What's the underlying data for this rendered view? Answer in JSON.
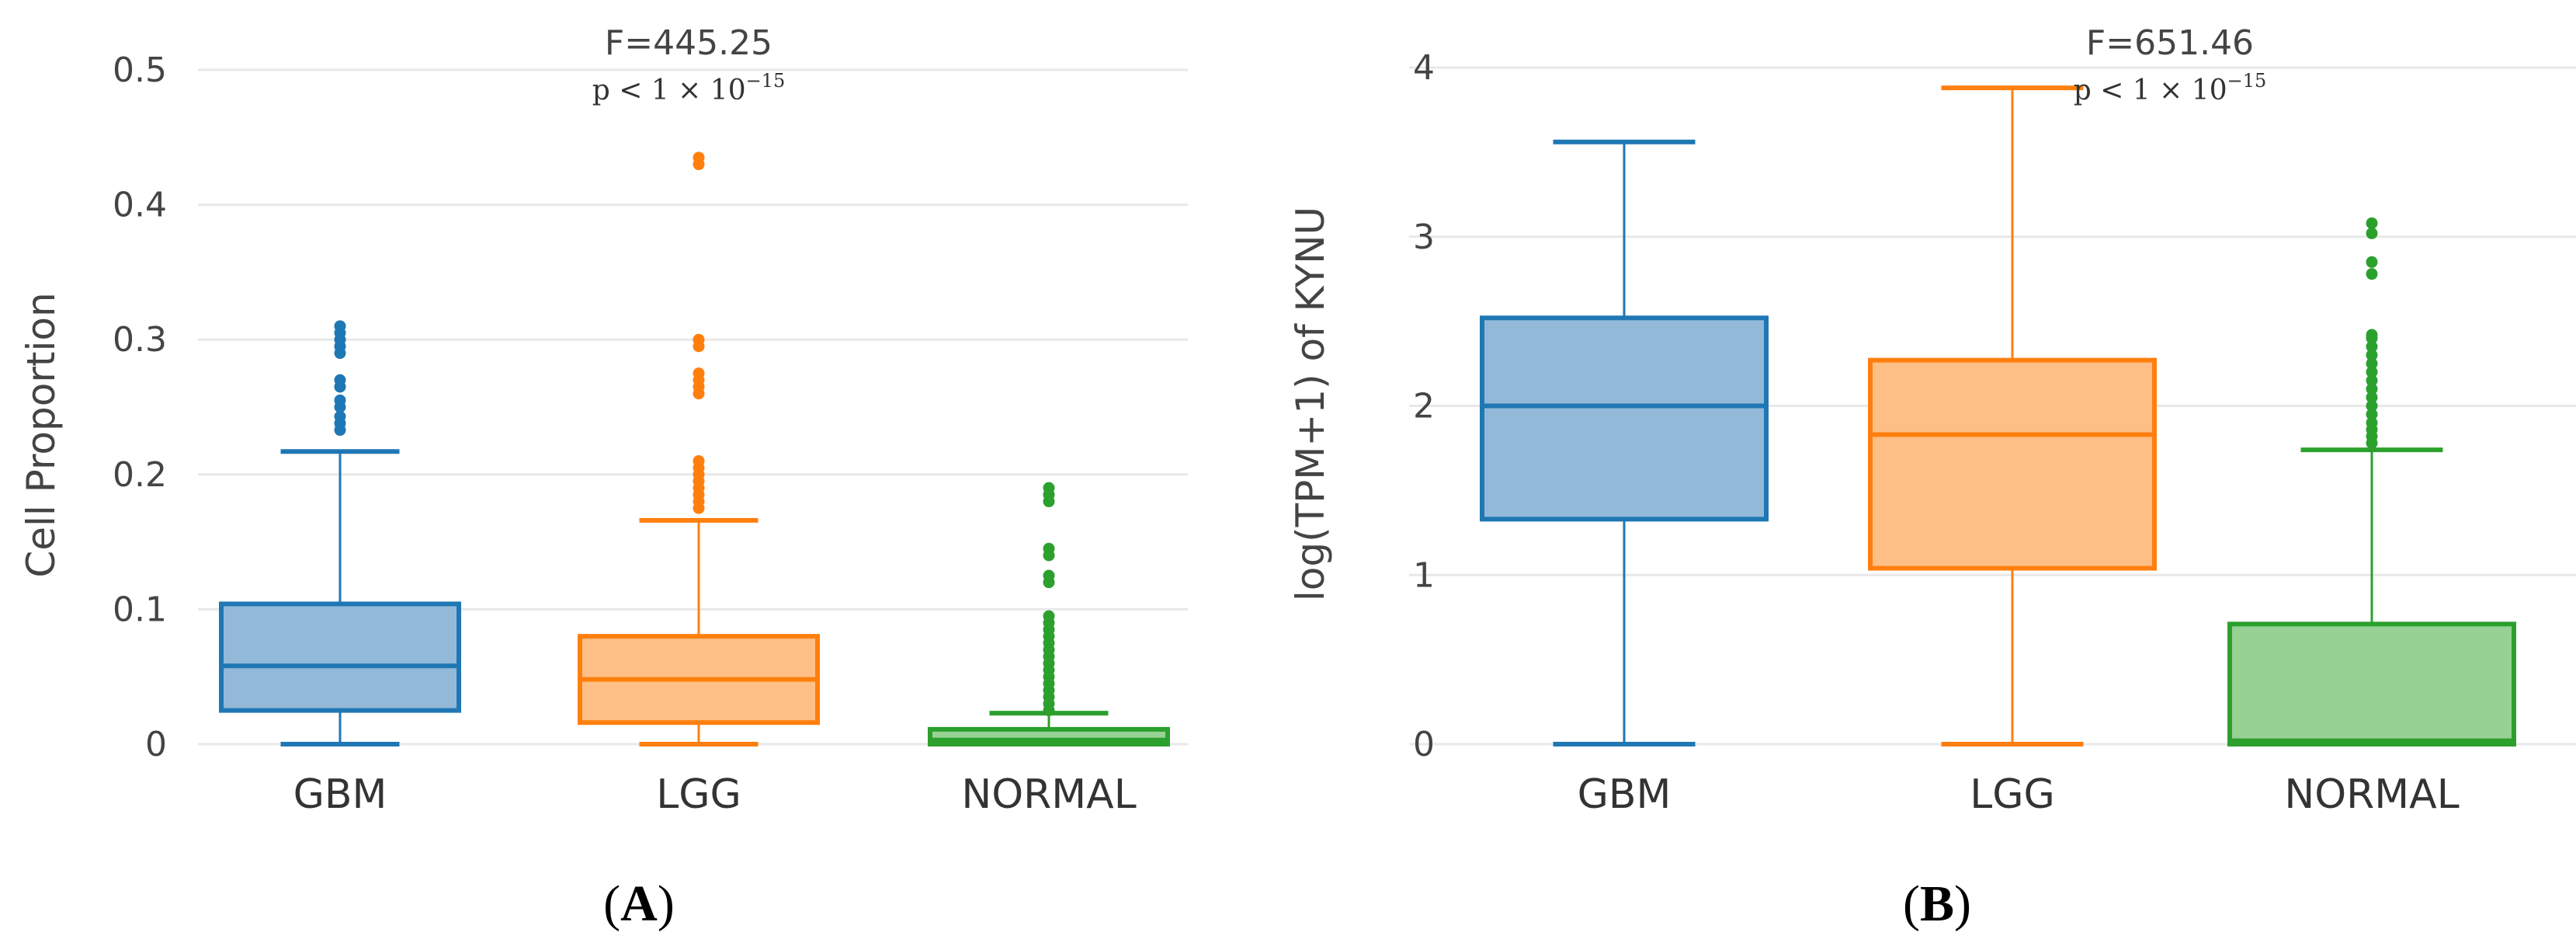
{
  "chart_data": [
    {
      "panel_label": "A",
      "type": "box",
      "ylabel": "Cell Proportion",
      "ylim": [
        0,
        0.5
      ],
      "yticks": [
        0,
        0.1,
        0.2,
        0.3,
        0.4,
        0.5
      ],
      "ytick_labels": [
        "0",
        "0.1",
        "0.2",
        "0.3",
        "0.4",
        "0.5"
      ],
      "grid": true,
      "annotation": {
        "f_text": "F=445.25",
        "p_text": "p < 1 × 10",
        "p_exponent": "−15"
      },
      "categories": [
        "GBM",
        "LGG",
        "NORMAL"
      ],
      "series": [
        {
          "name": "GBM",
          "color": "#1f77b4",
          "fill": "#93b9d9",
          "q1": 0.025,
          "median": 0.058,
          "q3": 0.104,
          "whisker_low": 0.0,
          "whisker_high": 0.217,
          "outliers": [
            0.233,
            0.238,
            0.243,
            0.25,
            0.255,
            0.265,
            0.27,
            0.29,
            0.295,
            0.3,
            0.305,
            0.31
          ]
        },
        {
          "name": "LGG",
          "color": "#ff7f0e",
          "fill": "#fdbf86",
          "q1": 0.016,
          "median": 0.048,
          "q3": 0.08,
          "whisker_low": 0.0,
          "whisker_high": 0.166,
          "outliers": [
            0.175,
            0.18,
            0.185,
            0.19,
            0.195,
            0.2,
            0.205,
            0.21,
            0.26,
            0.265,
            0.27,
            0.275,
            0.295,
            0.3,
            0.43,
            0.435
          ]
        },
        {
          "name": "NORMAL",
          "color": "#2ca02c",
          "fill": "#98d194",
          "q1": 0.0,
          "median": 0.003,
          "q3": 0.011,
          "whisker_low": 0.0,
          "whisker_high": 0.023,
          "outliers": [
            0.025,
            0.03,
            0.035,
            0.04,
            0.045,
            0.05,
            0.055,
            0.06,
            0.065,
            0.07,
            0.075,
            0.08,
            0.085,
            0.09,
            0.095,
            0.12,
            0.125,
            0.14,
            0.145,
            0.18,
            0.185,
            0.19
          ]
        }
      ]
    },
    {
      "panel_label": "B",
      "type": "box",
      "ylabel": "log(TPM+1) of KYNU",
      "ylim": [
        0,
        4
      ],
      "yticks": [
        0,
        1,
        2,
        3,
        4
      ],
      "ytick_labels": [
        "0",
        "1",
        "2",
        "3",
        "4"
      ],
      "grid": true,
      "annotation": {
        "f_text": "F=651.46",
        "p_text": "p < 1 × 10",
        "p_exponent": "−15"
      },
      "categories": [
        "GBM",
        "LGG",
        "NORMAL"
      ],
      "series": [
        {
          "name": "GBM",
          "color": "#1f77b4",
          "fill": "#93b9d9",
          "q1": 1.33,
          "median": 2.0,
          "q3": 2.52,
          "whisker_low": 0.0,
          "whisker_high": 3.56,
          "outliers": []
        },
        {
          "name": "LGG",
          "color": "#ff7f0e",
          "fill": "#fdbf86",
          "q1": 1.04,
          "median": 1.83,
          "q3": 2.27,
          "whisker_low": 0.0,
          "whisker_high": 3.88,
          "outliers": []
        },
        {
          "name": "NORMAL",
          "color": "#2ca02c",
          "fill": "#98d194",
          "q1": 0.0,
          "median": 0.02,
          "q3": 0.71,
          "whisker_low": 0.0,
          "whisker_high": 1.74,
          "outliers": [
            1.78,
            1.82,
            1.86,
            1.9,
            1.95,
            2.0,
            2.05,
            2.1,
            2.15,
            2.2,
            2.25,
            2.3,
            2.35,
            2.4,
            2.42,
            2.78,
            2.85,
            3.02,
            3.08
          ]
        }
      ]
    }
  ]
}
